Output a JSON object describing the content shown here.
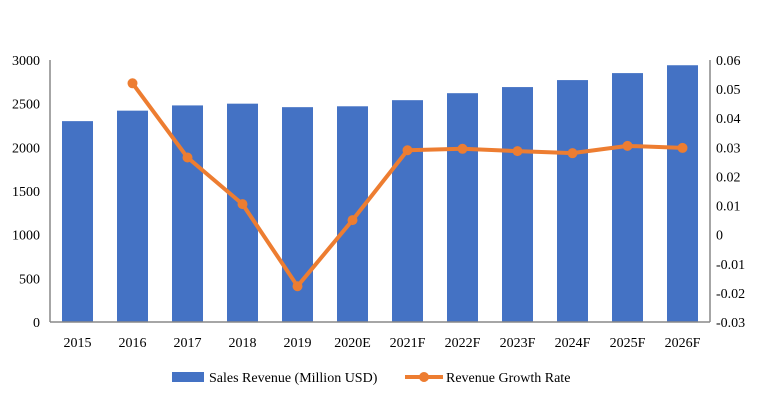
{
  "chart_data": {
    "type": "bar+line",
    "categories": [
      "2015",
      "2016",
      "2017",
      "2018",
      "2019",
      "2020E",
      "2021F",
      "2022F",
      "2023F",
      "2024F",
      "2025F",
      "2026F"
    ],
    "series": [
      {
        "name": "Sales Revenue (Million USD)",
        "type": "bar",
        "axis": "left",
        "color": "#4472C4",
        "values": [
          2300,
          2420,
          2480,
          2500,
          2460,
          2470,
          2540,
          2620,
          2690,
          2770,
          2850,
          2940
        ]
      },
      {
        "name": "Revenue Growth Rate",
        "type": "line",
        "axis": "right",
        "color": "#ED7D31",
        "values": [
          null,
          0.052,
          0.0265,
          0.0105,
          -0.0177,
          0.005,
          0.029,
          0.0295,
          0.0287,
          0.028,
          0.0305,
          0.0298
        ]
      }
    ],
    "y_left": {
      "range": [
        0,
        3000
      ],
      "ticks": [
        "0",
        "500",
        "1000",
        "1500",
        "2000",
        "2500",
        "3000"
      ]
    },
    "y_right": {
      "range": [
        -0.03,
        0.06
      ],
      "ticks": [
        "-0.03",
        "-0.02",
        "-0.01",
        "0",
        "0.01",
        "0.02",
        "0.03",
        "0.04",
        "0.05",
        "0.06"
      ]
    },
    "grid": false,
    "legend": "bottom"
  }
}
